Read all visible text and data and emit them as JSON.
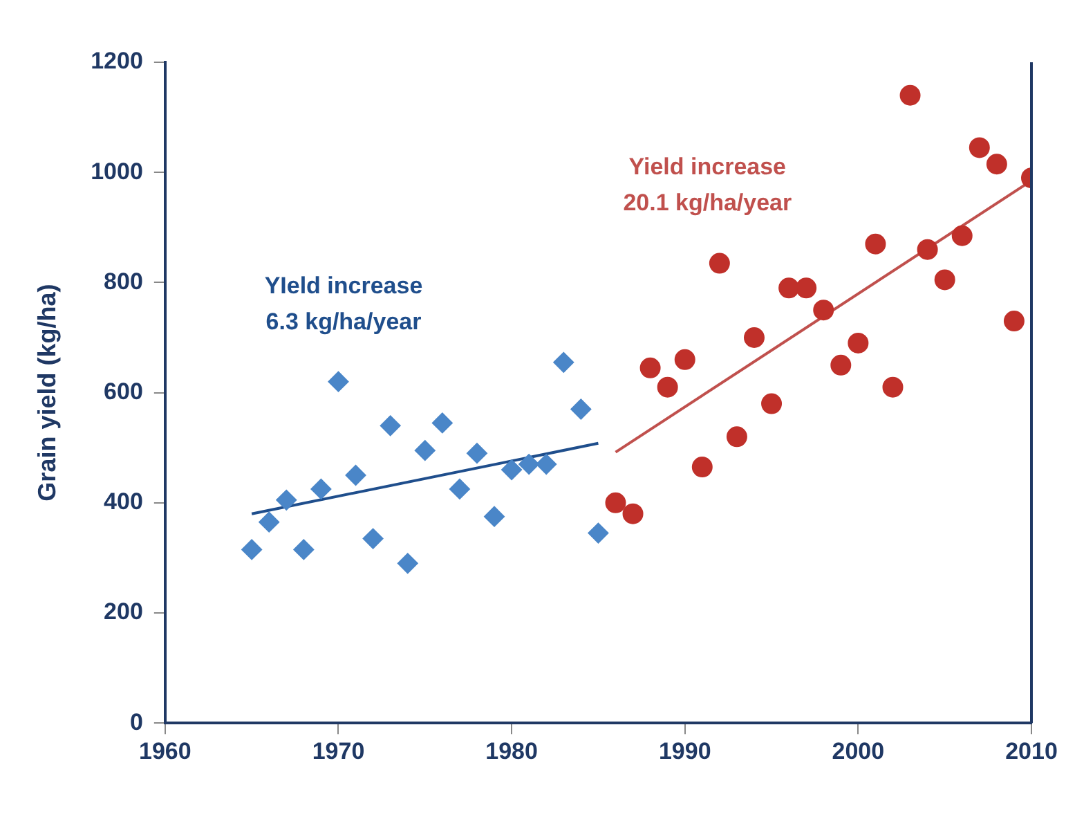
{
  "chart_data": {
    "type": "scatter",
    "ylabel": "Grain yield (kg/ha)",
    "xlim": [
      1960,
      2010
    ],
    "xticks": [
      1960,
      1970,
      1980,
      1990,
      2000,
      2010
    ],
    "ylim": [
      0,
      1200
    ],
    "yticks": [
      0,
      200,
      400,
      600,
      800,
      1000,
      1200
    ],
    "grid": false,
    "legend": false,
    "series": [
      {
        "marker": "diamond",
        "color": "#4a86c8",
        "x": [
          1965,
          1966,
          1967,
          1968,
          1969,
          1970,
          1971,
          1972,
          1973,
          1974,
          1975,
          1976,
          1977,
          1978,
          1979,
          1980,
          1981,
          1982,
          1983,
          1984,
          1985
        ],
        "values": [
          315,
          365,
          405,
          315,
          425,
          620,
          450,
          335,
          540,
          290,
          495,
          545,
          425,
          490,
          375,
          460,
          470,
          470,
          655,
          570,
          345
        ]
      },
      {
        "type": "line",
        "marker": "none",
        "color": "#1f4e8c",
        "x": [
          1965,
          1985
        ],
        "values": [
          380,
          508
        ]
      },
      {
        "marker": "circle",
        "color": "#c0302a",
        "x": [
          1986,
          1987,
          1988,
          1989,
          1990,
          1991,
          1992,
          1993,
          1994,
          1995,
          1996,
          1997,
          1998,
          1999,
          2000,
          2001,
          2002,
          2003,
          2004,
          2005,
          2006,
          2007,
          2008,
          2009,
          2010
        ],
        "values": [
          400,
          380,
          645,
          610,
          660,
          465,
          835,
          520,
          700,
          580,
          790,
          790,
          750,
          650,
          690,
          870,
          610,
          1140,
          860,
          805,
          885,
          1045,
          1015,
          730,
          990
        ]
      },
      {
        "type": "line",
        "marker": "none",
        "color": "#c0504d",
        "x": [
          1986,
          2010
        ],
        "values": [
          492,
          985
        ]
      }
    ],
    "annotations": [
      "YIeld increase\n6.3 kg/ha/year",
      "Yield increase\n20.1 kg/ha/year"
    ]
  }
}
